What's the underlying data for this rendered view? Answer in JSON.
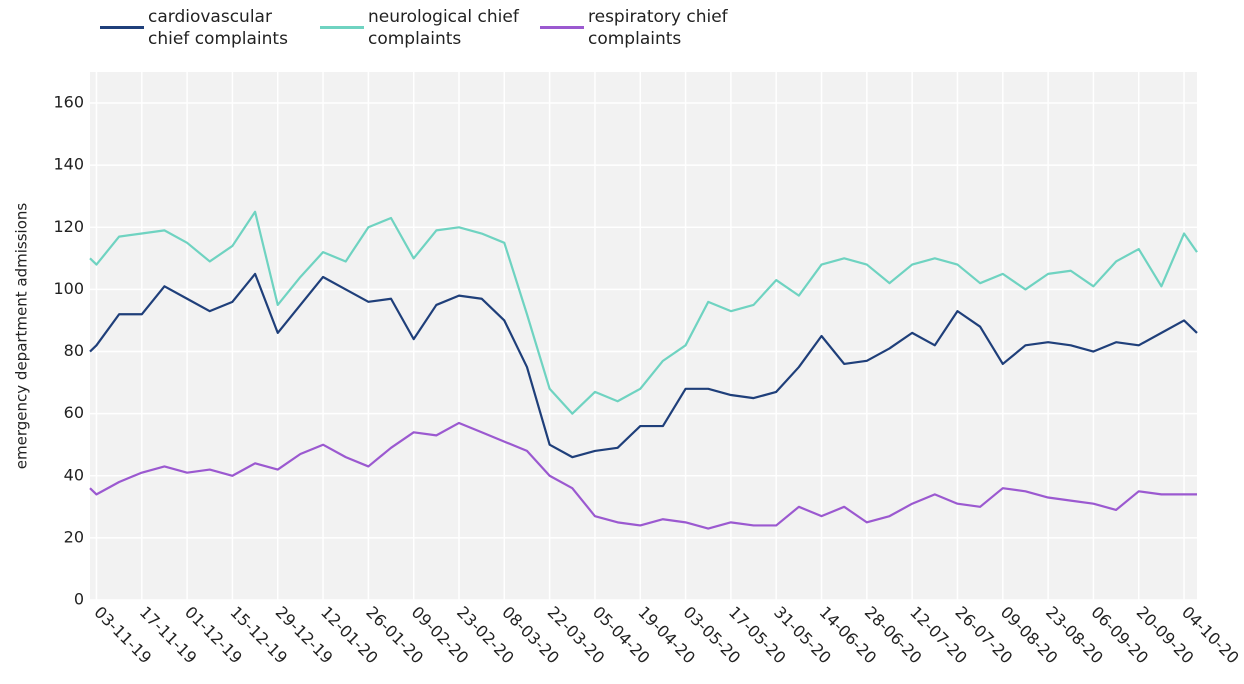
{
  "chart_data": {
    "type": "line",
    "y_label": "emergency department admissions",
    "x": [
      "01-11-19",
      "03-11-19",
      "10-11-19",
      "17-11-19",
      "24-11-19",
      "01-12-19",
      "08-12-19",
      "15-12-19",
      "22-12-19",
      "29-12-19",
      "05-01-20",
      "12-01-20",
      "19-01-20",
      "26-01-20",
      "02-02-20",
      "09-02-20",
      "16-02-20",
      "23-02-20",
      "01-03-20",
      "08-03-20",
      "15-03-20",
      "22-03-20",
      "29-03-20",
      "05-04-20",
      "12-04-20",
      "19-04-20",
      "26-04-20",
      "03-05-20",
      "10-05-20",
      "17-05-20",
      "24-05-20",
      "31-05-20",
      "07-06-20",
      "14-06-20",
      "21-06-20",
      "28-06-20",
      "05-07-20",
      "12-07-20",
      "19-07-20",
      "26-07-20",
      "02-08-20",
      "09-08-20",
      "16-08-20",
      "23-08-20",
      "30-08-20",
      "06-09-20",
      "13-09-20",
      "20-09-20",
      "27-09-20",
      "04-10-20",
      "08-10-20"
    ],
    "series": [
      {
        "name": "cardiovascular chief complaints",
        "color": "#1f3f7a",
        "values": [
          80,
          82,
          92,
          92,
          101,
          97,
          93,
          96,
          105,
          86,
          95,
          104,
          100,
          96,
          97,
          84,
          95,
          98,
          97,
          90,
          75,
          50,
          46,
          48,
          49,
          56,
          56,
          68,
          68,
          66,
          65,
          67,
          75,
          85,
          76,
          77,
          81,
          86,
          82,
          93,
          88,
          76,
          82,
          83,
          82,
          80,
          83,
          82,
          86,
          90,
          86
        ]
      },
      {
        "name": "neurological chief complaints",
        "color": "#6fd3c1",
        "values": [
          110,
          108,
          117,
          118,
          119,
          115,
          109,
          114,
          125,
          95,
          104,
          112,
          109,
          120,
          123,
          110,
          119,
          120,
          118,
          115,
          92,
          68,
          60,
          67,
          64,
          68,
          77,
          82,
          96,
          93,
          95,
          103,
          98,
          108,
          110,
          108,
          102,
          108,
          110,
          108,
          102,
          105,
          100,
          105,
          106,
          101,
          109,
          113,
          101,
          118,
          112
        ]
      },
      {
        "name": "respiratory chief complaints",
        "color": "#9b59d0",
        "values": [
          36,
          34,
          38,
          41,
          43,
          41,
          42,
          40,
          44,
          42,
          47,
          50,
          46,
          43,
          49,
          54,
          53,
          57,
          54,
          51,
          48,
          40,
          36,
          27,
          25,
          24,
          26,
          25,
          23,
          25,
          24,
          24,
          30,
          27,
          30,
          25,
          27,
          31,
          34,
          31,
          30,
          36,
          35,
          33,
          32,
          31,
          29,
          35,
          34,
          34,
          34
        ]
      }
    ],
    "xlim": [
      "01-11-19",
      "08-10-20"
    ],
    "xticks": [
      "03-11-19",
      "17-11-19",
      "01-12-19",
      "15-12-19",
      "29-12-19",
      "12-01-20",
      "26-01-20",
      "09-02-20",
      "23-02-20",
      "08-03-20",
      "22-03-20",
      "05-04-20",
      "19-04-20",
      "03-05-20",
      "17-05-20",
      "31-05-20",
      "14-06-20",
      "28-06-20",
      "12-07-20",
      "26-07-20",
      "09-08-20",
      "23-08-20",
      "06-09-20",
      "20-09-20",
      "04-10-20"
    ],
    "ylim": [
      0,
      170
    ],
    "yticks": [
      0,
      20,
      40,
      60,
      80,
      100,
      120,
      140,
      160
    ],
    "grid": true
  }
}
